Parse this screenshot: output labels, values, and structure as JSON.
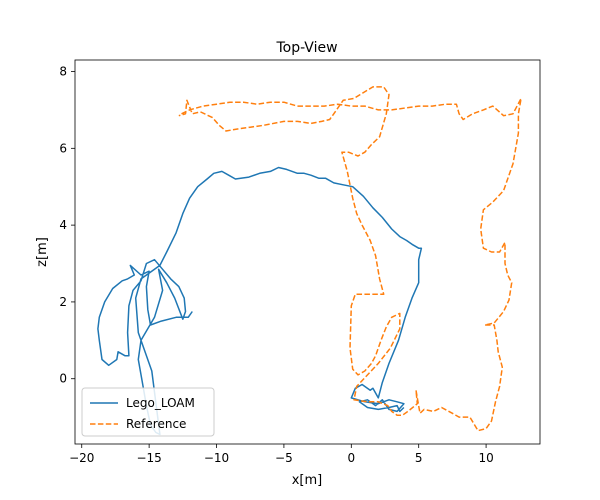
{
  "chart_data": {
    "type": "line",
    "title": "Top-View",
    "xlabel": "x[m]",
    "ylabel": "z[m]",
    "xlim": [
      -20.5,
      14.0
    ],
    "ylim": [
      -1.7,
      8.3
    ],
    "xticks": [
      -20,
      -15,
      -10,
      -5,
      0,
      5,
      10
    ],
    "xtick_labels": [
      "−20",
      "−15",
      "−10",
      "−5",
      "0",
      "5",
      "10"
    ],
    "yticks": [
      0,
      2,
      4,
      6,
      8
    ],
    "ytick_labels": [
      "0",
      "2",
      "4",
      "6",
      "8"
    ],
    "grid": false,
    "legend_position": "lower-left",
    "series": [
      {
        "name": "Lego_LOAM",
        "color": "#1f77b4",
        "style": "solid",
        "points": [
          [
            -11.8,
            1.75
          ],
          [
            -12.1,
            1.6
          ],
          [
            -13.0,
            1.6
          ],
          [
            -14.1,
            1.5
          ],
          [
            -14.9,
            1.4
          ],
          [
            -15.1,
            1.8
          ],
          [
            -15.2,
            2.4
          ],
          [
            -15.0,
            2.8
          ],
          [
            -15.6,
            2.7
          ],
          [
            -16.4,
            2.95
          ],
          [
            -16.1,
            2.7
          ],
          [
            -16.6,
            2.6
          ],
          [
            -17.0,
            2.55
          ],
          [
            -17.7,
            2.35
          ],
          [
            -18.3,
            2.0
          ],
          [
            -18.7,
            1.6
          ],
          [
            -18.8,
            1.3
          ],
          [
            -18.7,
            1.0
          ],
          [
            -18.5,
            0.5
          ],
          [
            -18.0,
            0.35
          ],
          [
            -17.4,
            0.5
          ],
          [
            -17.3,
            0.7
          ],
          [
            -16.8,
            0.6
          ],
          [
            -16.5,
            0.6
          ],
          [
            -16.6,
            1.2
          ],
          [
            -16.5,
            1.9
          ],
          [
            -16.2,
            2.3
          ],
          [
            -15.6,
            2.55
          ],
          [
            -15.2,
            3.0
          ],
          [
            -14.6,
            3.1
          ],
          [
            -14.0,
            2.85
          ],
          [
            -13.4,
            2.6
          ],
          [
            -12.8,
            2.4
          ],
          [
            -12.4,
            2.1
          ],
          [
            -12.3,
            1.75
          ],
          [
            -12.5,
            1.55
          ],
          [
            -13.1,
            2.1
          ],
          [
            -13.7,
            2.5
          ],
          [
            -14.3,
            2.85
          ],
          [
            -14.0,
            2.3
          ],
          [
            -14.6,
            1.6
          ],
          [
            -15.6,
            1.0
          ],
          [
            -15.8,
            0.5
          ],
          [
            -15.5,
            -0.1
          ],
          [
            -15.2,
            -0.7
          ],
          [
            -14.9,
            -1.2
          ],
          [
            -14.5,
            -1.4
          ],
          [
            -14.2,
            -1.45
          ],
          [
            -14.8,
            0.2
          ],
          [
            -15.8,
            1.2
          ],
          [
            -16.0,
            2.1
          ],
          [
            -15.6,
            2.6
          ],
          [
            -15.0,
            2.75
          ],
          [
            -14.2,
            2.95
          ],
          [
            -13.7,
            3.3
          ],
          [
            -13.0,
            3.8
          ],
          [
            -12.5,
            4.3
          ],
          [
            -12.0,
            4.7
          ],
          [
            -11.4,
            5.0
          ],
          [
            -10.7,
            5.2
          ],
          [
            -10.2,
            5.35
          ],
          [
            -9.6,
            5.4
          ],
          [
            -9.1,
            5.3
          ],
          [
            -8.6,
            5.2
          ],
          [
            -7.6,
            5.25
          ],
          [
            -6.8,
            5.35
          ],
          [
            -6.0,
            5.4
          ],
          [
            -5.4,
            5.5
          ],
          [
            -4.8,
            5.45
          ],
          [
            -4.0,
            5.35
          ],
          [
            -3.5,
            5.35
          ],
          [
            -3.0,
            5.3
          ],
          [
            -2.4,
            5.22
          ],
          [
            -1.9,
            5.22
          ],
          [
            -1.3,
            5.1
          ],
          [
            -0.6,
            5.05
          ],
          [
            0.1,
            5.0
          ],
          [
            0.9,
            4.75
          ],
          [
            1.6,
            4.45
          ],
          [
            2.3,
            4.2
          ],
          [
            3.0,
            3.9
          ],
          [
            3.6,
            3.7
          ],
          [
            4.1,
            3.6
          ],
          [
            4.5,
            3.5
          ],
          [
            5.0,
            3.4
          ],
          [
            5.2,
            3.4
          ],
          [
            5.0,
            3.1
          ],
          [
            5.0,
            2.5
          ],
          [
            4.5,
            2.1
          ],
          [
            4.0,
            1.6
          ],
          [
            3.5,
            1.0
          ],
          [
            2.8,
            0.4
          ],
          [
            2.3,
            -0.1
          ],
          [
            2.0,
            -0.5
          ],
          [
            1.6,
            -0.25
          ],
          [
            1.4,
            -0.3
          ],
          [
            0.8,
            -0.15
          ],
          [
            0.3,
            -0.25
          ],
          [
            0.0,
            -0.5
          ],
          [
            1.0,
            -0.6
          ],
          [
            2.0,
            -0.65
          ],
          [
            2.8,
            -0.55
          ],
          [
            3.4,
            -0.6
          ],
          [
            3.9,
            -0.65
          ],
          [
            3.4,
            -0.85
          ],
          [
            2.8,
            -0.8
          ],
          [
            2.3,
            -0.55
          ],
          [
            1.8,
            -0.7
          ],
          [
            1.2,
            -0.55
          ],
          [
            0.6,
            -0.6
          ],
          [
            1.2,
            -0.75
          ],
          [
            2.0,
            -0.8
          ],
          [
            2.8,
            -0.75
          ],
          [
            3.4,
            -0.7
          ],
          [
            3.6,
            -0.85
          ],
          [
            3.9,
            -0.75
          ]
        ]
      },
      {
        "name": "Reference",
        "color": "#ff7f0e",
        "style": "dashed",
        "points": [
          [
            -12.6,
            6.9
          ],
          [
            -12.0,
            7.0
          ],
          [
            -11.0,
            7.1
          ],
          [
            -10.0,
            7.15
          ],
          [
            -9.0,
            7.2
          ],
          [
            -8.0,
            7.2
          ],
          [
            -7.0,
            7.15
          ],
          [
            -6.0,
            7.2
          ],
          [
            -5.0,
            7.2
          ],
          [
            -4.0,
            7.1
          ],
          [
            -3.0,
            7.1
          ],
          [
            -2.0,
            7.1
          ],
          [
            -1.0,
            7.15
          ],
          [
            0.0,
            7.1
          ],
          [
            1.0,
            7.1
          ],
          [
            2.0,
            7.0
          ],
          [
            3.0,
            7.0
          ],
          [
            4.0,
            7.05
          ],
          [
            5.0,
            7.1
          ],
          [
            6.0,
            7.1
          ],
          [
            7.0,
            7.15
          ],
          [
            7.8,
            7.15
          ],
          [
            8.0,
            6.9
          ],
          [
            8.3,
            6.75
          ],
          [
            9.0,
            6.9
          ],
          [
            9.8,
            7.0
          ],
          [
            10.5,
            7.1
          ],
          [
            11.3,
            6.85
          ],
          [
            12.0,
            6.9
          ],
          [
            12.6,
            7.3
          ],
          [
            12.4,
            6.9
          ],
          [
            12.4,
            6.4
          ],
          [
            12.0,
            5.6
          ],
          [
            11.3,
            4.9
          ],
          [
            10.5,
            4.6
          ],
          [
            9.8,
            4.4
          ],
          [
            9.6,
            3.9
          ],
          [
            9.8,
            3.4
          ],
          [
            10.4,
            3.3
          ],
          [
            11.0,
            3.3
          ],
          [
            11.4,
            3.55
          ],
          [
            11.4,
            3.0
          ],
          [
            11.6,
            2.7
          ],
          [
            11.9,
            2.5
          ],
          [
            11.7,
            2.05
          ],
          [
            11.3,
            1.75
          ],
          [
            10.6,
            1.45
          ],
          [
            9.9,
            1.4
          ],
          [
            10.6,
            1.4
          ],
          [
            10.8,
            1.0
          ],
          [
            10.9,
            0.7
          ],
          [
            11.2,
            0.3
          ],
          [
            11.0,
            -0.2
          ],
          [
            10.7,
            -0.6
          ],
          [
            10.4,
            -1.1
          ],
          [
            10.0,
            -1.3
          ],
          [
            9.4,
            -1.35
          ],
          [
            8.8,
            -1.0
          ],
          [
            8.0,
            -1.0
          ],
          [
            7.5,
            -0.9
          ],
          [
            6.7,
            -0.75
          ],
          [
            6.1,
            -0.85
          ],
          [
            5.4,
            -0.8
          ],
          [
            5.1,
            -0.9
          ],
          [
            4.9,
            -0.5
          ],
          [
            4.8,
            -0.3
          ],
          [
            4.9,
            -0.65
          ],
          [
            4.2,
            -0.85
          ],
          [
            3.8,
            -0.95
          ],
          [
            3.4,
            -0.95
          ],
          [
            3.0,
            -0.85
          ],
          [
            2.7,
            -0.7
          ],
          [
            2.0,
            -0.6
          ],
          [
            1.2,
            -0.6
          ],
          [
            0.2,
            -0.55
          ],
          [
            0.4,
            -0.2
          ],
          [
            1.2,
            0.1
          ],
          [
            2.0,
            0.4
          ],
          [
            2.9,
            0.8
          ],
          [
            3.6,
            1.3
          ],
          [
            3.6,
            1.7
          ],
          [
            3.0,
            1.6
          ],
          [
            2.6,
            1.35
          ],
          [
            2.2,
            1.0
          ],
          [
            1.8,
            0.6
          ],
          [
            1.5,
            0.4
          ],
          [
            1.0,
            0.2
          ],
          [
            0.5,
            0.1
          ],
          [
            0.1,
            0.25
          ],
          [
            -0.1,
            0.8
          ],
          [
            0.0,
            1.9
          ],
          [
            0.3,
            2.2
          ],
          [
            1.2,
            2.2
          ],
          [
            2.0,
            2.2
          ],
          [
            2.4,
            2.2
          ],
          [
            2.1,
            2.6
          ],
          [
            1.8,
            3.2
          ],
          [
            1.4,
            3.6
          ],
          [
            0.8,
            4.0
          ],
          [
            0.4,
            4.3
          ],
          [
            0.1,
            4.7
          ],
          [
            -0.3,
            5.4
          ],
          [
            -0.7,
            5.9
          ],
          [
            -0.2,
            5.9
          ],
          [
            0.5,
            5.8
          ],
          [
            1.0,
            5.9
          ],
          [
            1.5,
            6.1
          ],
          [
            2.1,
            6.3
          ],
          [
            2.6,
            6.9
          ],
          [
            2.8,
            7.4
          ],
          [
            2.4,
            7.6
          ],
          [
            1.6,
            7.6
          ],
          [
            0.9,
            7.45
          ],
          [
            0.2,
            7.3
          ],
          [
            -0.6,
            7.25
          ],
          [
            -1.3,
            6.9
          ],
          [
            -1.6,
            6.75
          ],
          [
            -2.2,
            6.7
          ],
          [
            -3.0,
            6.65
          ],
          [
            -4.0,
            6.7
          ],
          [
            -5.0,
            6.7
          ],
          [
            -6.5,
            6.6
          ],
          [
            -7.5,
            6.55
          ],
          [
            -8.5,
            6.5
          ],
          [
            -9.3,
            6.45
          ],
          [
            -9.8,
            6.6
          ],
          [
            -10.3,
            6.8
          ],
          [
            -11.2,
            6.95
          ],
          [
            -11.8,
            6.9
          ],
          [
            -12.2,
            7.25
          ],
          [
            -12.3,
            6.9
          ],
          [
            -12.8,
            6.85
          ]
        ]
      }
    ]
  }
}
